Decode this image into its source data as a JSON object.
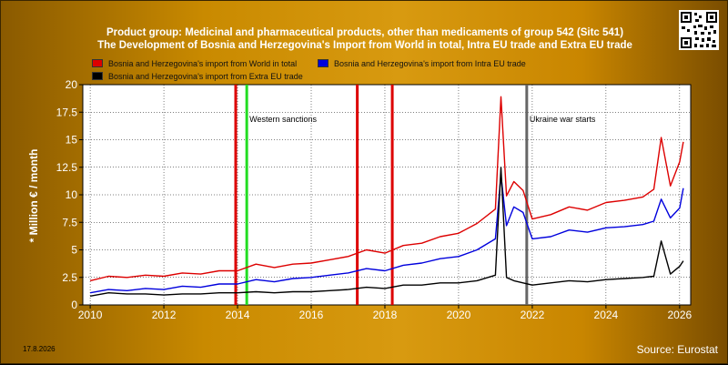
{
  "header": {
    "title_line1": "Product group: Medicinal and pharmaceutical products, other than medicaments of group 542 (Sitc 541)",
    "title_line2": "The Development of Bosnia and Herzegovina's Import from World in total, Intra EU trade and Extra EU trade"
  },
  "legend": {
    "world": "Bosnia and Herzegovina's import from World in total",
    "intra": "Bosnia and Herzegovina's import from Intra EU trade",
    "extra": "Bosnia and Herzegovina's import from Extra EU trade"
  },
  "footer": {
    "date": "17.8.2026",
    "source": "Source: Eurostat"
  },
  "colors": {
    "world": "#dd0000",
    "intra": "#0000dd",
    "extra": "#000000",
    "sanctions": "#dd0000",
    "sanctions_green": "#22dd22",
    "war": "#666666"
  },
  "chart_data": {
    "type": "line",
    "ylabel": "* Million € / month",
    "ylim": [
      0,
      20
    ],
    "xlim": [
      2009.8,
      2026.3
    ],
    "yticks": [
      0,
      2.5,
      5,
      7.5,
      10,
      12.5,
      15,
      17.5,
      20
    ],
    "ytick_labels": [
      "0",
      "2.5",
      "5",
      "7.5",
      "10",
      "12.5",
      "15",
      "17.5",
      "20"
    ],
    "xticks": [
      2010,
      2012,
      2014,
      2016,
      2018,
      2020,
      2022,
      2024,
      2026
    ],
    "xtick_labels": [
      "2010",
      "2012",
      "2014",
      "2016",
      "2018",
      "2020",
      "2022",
      "2024",
      "2026"
    ],
    "grid": true,
    "legend_position": "top-left",
    "series": [
      {
        "key": "world",
        "name": "Bosnia and Herzegovina's import from World in total",
        "x": [
          2010,
          2010.5,
          2011,
          2011.5,
          2012,
          2012.5,
          2013,
          2013.5,
          2014,
          2014.5,
          2015,
          2015.5,
          2016,
          2016.5,
          2017,
          2017.5,
          2018,
          2018.5,
          2019,
          2019.5,
          2020,
          2020.5,
          2021,
          2021.15,
          2021.3,
          2021.5,
          2021.75,
          2022,
          2022.5,
          2023,
          2023.5,
          2024,
          2024.5,
          2025,
          2025.3,
          2025.5,
          2025.75,
          2026,
          2026.1
        ],
        "y": [
          2.2,
          2.6,
          2.5,
          2.7,
          2.6,
          2.9,
          2.8,
          3.1,
          3.1,
          3.7,
          3.4,
          3.7,
          3.8,
          4.1,
          4.4,
          5.0,
          4.7,
          5.4,
          5.6,
          6.2,
          6.5,
          7.4,
          8.7,
          18.9,
          9.9,
          11.2,
          10.4,
          7.8,
          8.2,
          8.9,
          8.6,
          9.3,
          9.5,
          9.8,
          10.5,
          15.2,
          10.8,
          13.0,
          14.8
        ]
      },
      {
        "key": "intra",
        "name": "Bosnia and Herzegovina's import from Intra EU trade",
        "x": [
          2010,
          2010.5,
          2011,
          2011.5,
          2012,
          2012.5,
          2013,
          2013.5,
          2014,
          2014.5,
          2015,
          2015.5,
          2016,
          2016.5,
          2017,
          2017.5,
          2018,
          2018.5,
          2019,
          2019.5,
          2020,
          2020.5,
          2021,
          2021.15,
          2021.3,
          2021.5,
          2021.75,
          2022,
          2022.5,
          2023,
          2023.5,
          2024,
          2024.5,
          2025,
          2025.3,
          2025.5,
          2025.75,
          2026,
          2026.1
        ],
        "y": [
          1.1,
          1.4,
          1.3,
          1.5,
          1.4,
          1.7,
          1.6,
          1.9,
          1.9,
          2.3,
          2.1,
          2.4,
          2.5,
          2.7,
          2.9,
          3.3,
          3.1,
          3.6,
          3.8,
          4.2,
          4.4,
          5.0,
          6.0,
          11.8,
          7.2,
          8.9,
          8.4,
          6.0,
          6.2,
          6.8,
          6.6,
          7.0,
          7.1,
          7.3,
          7.6,
          9.6,
          7.9,
          8.8,
          10.6
        ]
      },
      {
        "key": "extra",
        "name": "Bosnia and Herzegovina's import from Extra EU trade",
        "x": [
          2010,
          2010.5,
          2011,
          2011.5,
          2012,
          2012.5,
          2013,
          2013.5,
          2014,
          2014.5,
          2015,
          2015.5,
          2016,
          2016.5,
          2017,
          2017.5,
          2018,
          2018.5,
          2019,
          2019.5,
          2020,
          2020.5,
          2021,
          2021.15,
          2021.3,
          2021.5,
          2021.75,
          2022,
          2022.5,
          2023,
          2023.5,
          2024,
          2024.5,
          2025,
          2025.3,
          2025.5,
          2025.75,
          2026,
          2026.1
        ],
        "y": [
          0.8,
          1.1,
          1.0,
          1.0,
          0.9,
          1.0,
          1.0,
          1.1,
          1.1,
          1.2,
          1.1,
          1.2,
          1.2,
          1.3,
          1.4,
          1.6,
          1.5,
          1.8,
          1.8,
          2.0,
          2.0,
          2.2,
          2.7,
          12.5,
          2.5,
          2.2,
          2.0,
          1.8,
          2.0,
          2.2,
          2.1,
          2.3,
          2.4,
          2.5,
          2.6,
          5.8,
          2.8,
          3.5,
          4.0
        ]
      }
    ],
    "events": [
      {
        "x": 2013.95,
        "color": "#dd0000",
        "label": ""
      },
      {
        "x": 2014.25,
        "color": "#22dd22",
        "label": "Western sanctions"
      },
      {
        "x": 2017.25,
        "color": "#dd0000",
        "label": ""
      },
      {
        "x": 2018.2,
        "color": "#dd0000",
        "label": ""
      },
      {
        "x": 2021.85,
        "color": "#666666",
        "label": "Ukraine war starts"
      }
    ]
  }
}
